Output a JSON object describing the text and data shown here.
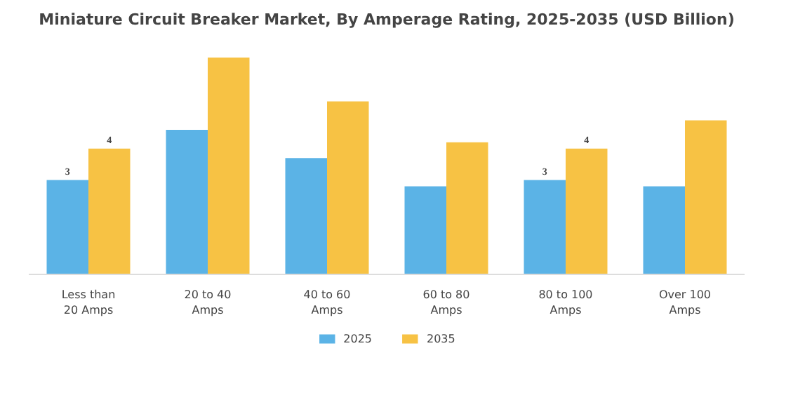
{
  "chart_data": {
    "type": "bar",
    "title": "Miniature Circuit Breaker Market, By Amperage Rating, 2025-2035 (USD Billion)",
    "categories": [
      "Less than\n20 Amps",
      "20 to 40\nAmps",
      "40 to 60\nAmps",
      "60 to 80\nAmps",
      "80 to 100\nAmps",
      "Over 100\nAmps"
    ],
    "series": [
      {
        "name": "2025",
        "color": "#5bb3e6",
        "values": [
          3,
          4.6,
          3.7,
          2.8,
          3,
          2.8
        ],
        "value_labels": [
          "3",
          null,
          null,
          null,
          "3",
          null
        ]
      },
      {
        "name": "2035",
        "color": "#f7c244",
        "values": [
          4,
          6.9,
          5.5,
          4.2,
          4,
          4.9
        ],
        "value_labels": [
          "4",
          null,
          null,
          null,
          "4",
          null
        ]
      }
    ],
    "legend": "bottom"
  }
}
